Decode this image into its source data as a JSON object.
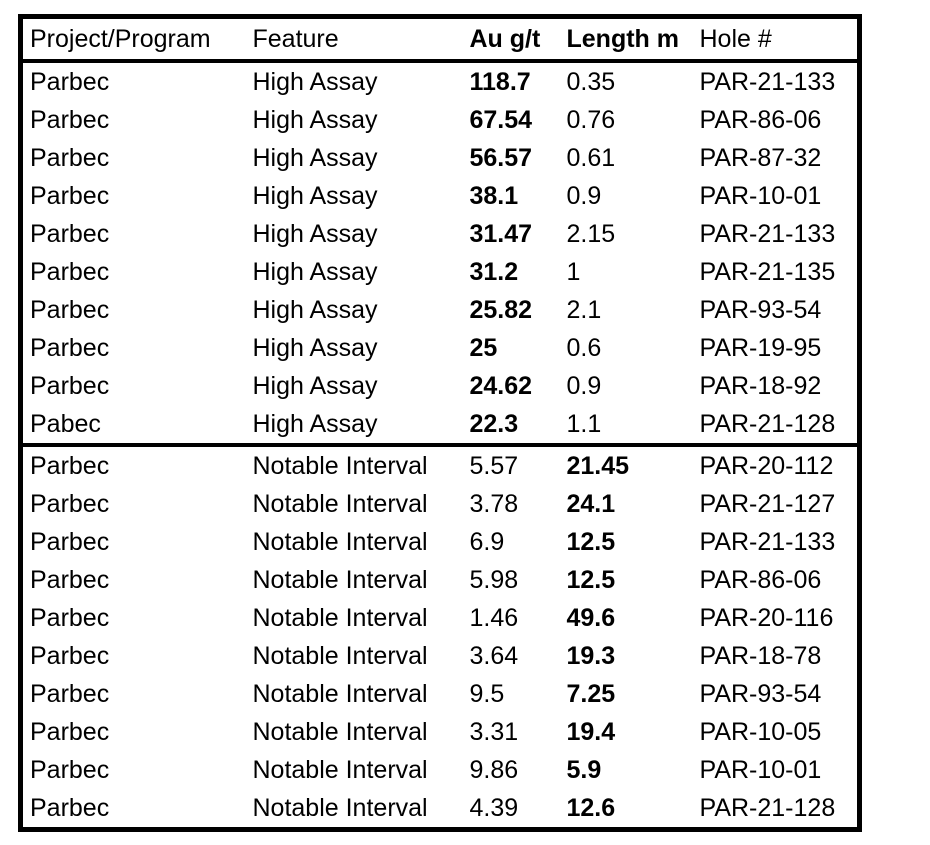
{
  "table": {
    "columns": [
      {
        "label": "Project/Program",
        "bold": false
      },
      {
        "label": "Feature",
        "bold": false
      },
      {
        "label": "Au g/t",
        "bold": true
      },
      {
        "label": "Length m",
        "bold": true
      },
      {
        "label": "Hole #",
        "bold": false
      }
    ],
    "sections": [
      {
        "name": "high-assay",
        "bold_col": 2,
        "rows": [
          [
            "Parbec",
            "High Assay",
            "118.7",
            "0.35",
            "PAR-21-133"
          ],
          [
            "Parbec",
            "High Assay",
            "67.54",
            "0.76",
            "PAR-86-06"
          ],
          [
            "Parbec",
            "High Assay",
            "56.57",
            "0.61",
            "PAR-87-32"
          ],
          [
            "Parbec",
            "High Assay",
            "38.1",
            "0.9",
            "PAR-10-01"
          ],
          [
            "Parbec",
            "High Assay",
            "31.47",
            "2.15",
            "PAR-21-133"
          ],
          [
            "Parbec",
            "High Assay",
            "31.2",
            "1",
            "PAR-21-135"
          ],
          [
            "Parbec",
            "High Assay",
            "25.82",
            "2.1",
            "PAR-93-54"
          ],
          [
            "Parbec",
            "High Assay",
            "25",
            "0.6",
            "PAR-19-95"
          ],
          [
            "Parbec",
            "High Assay",
            "24.62",
            "0.9",
            "PAR-18-92"
          ],
          [
            "Pabec",
            "High Assay",
            "22.3",
            "1.1",
            "PAR-21-128"
          ]
        ]
      },
      {
        "name": "notable-interval",
        "bold_col": 3,
        "rows": [
          [
            "Parbec",
            "Notable Interval",
            "5.57",
            "21.45",
            "PAR-20-112"
          ],
          [
            "Parbec",
            "Notable Interval",
            "3.78",
            "24.1",
            "PAR-21-127"
          ],
          [
            "Parbec",
            "Notable Interval",
            "6.9",
            "12.5",
            "PAR-21-133"
          ],
          [
            "Parbec",
            "Notable Interval",
            "5.98",
            "12.5",
            "PAR-86-06"
          ],
          [
            "Parbec",
            "Notable Interval",
            "1.46",
            "49.6",
            "PAR-20-116"
          ],
          [
            "Parbec",
            "Notable Interval",
            "3.64",
            "19.3",
            "PAR-18-78"
          ],
          [
            "Parbec",
            "Notable Interval",
            "9.5",
            "7.25",
            "PAR-93-54"
          ],
          [
            "Parbec",
            "Notable Interval",
            "3.31",
            "19.4",
            "PAR-10-05"
          ],
          [
            "Parbec",
            "Notable Interval",
            "9.86",
            "5.9",
            "PAR-10-01"
          ],
          [
            "Parbec",
            "Notable Interval",
            "4.39",
            "12.6",
            "PAR-21-128"
          ]
        ]
      }
    ],
    "colors": {
      "border": "#000000",
      "text": "#000000",
      "background": "#ffffff"
    }
  }
}
